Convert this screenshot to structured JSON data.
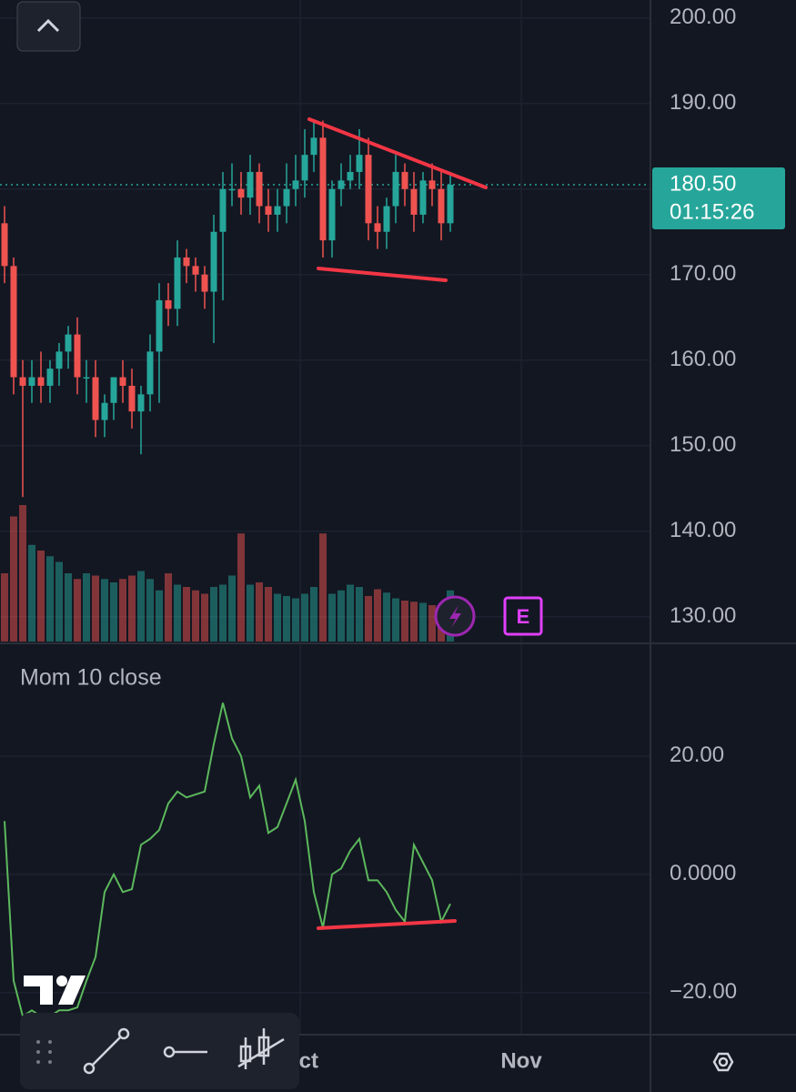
{
  "chart_data": [
    {
      "type": "candlestick",
      "xlim": [
        -0.5,
        71
      ],
      "xticks": [
        {
          "value": 32.5,
          "label": "Oct"
        },
        {
          "value": 56.8,
          "label": "Nov"
        }
      ],
      "ylim": [
        127.1,
        202.1
      ],
      "yticks": [
        {
          "value": 130,
          "label": "130.00"
        },
        {
          "value": 140,
          "label": "140.00"
        },
        {
          "value": 150,
          "label": "150.00"
        },
        {
          "value": 160,
          "label": "160.00"
        },
        {
          "value": 170,
          "label": "170.00"
        },
        {
          "value": 180,
          "label": "180.00"
        },
        {
          "value": 190,
          "label": "190.00"
        },
        {
          "value": 200,
          "label": "200.00"
        }
      ],
      "up_color": "#26a69a",
      "down_color": "#ef5350",
      "open": [
        176,
        171,
        158,
        157,
        158,
        157,
        159,
        161,
        163,
        158,
        158,
        153,
        155,
        158,
        157,
        154,
        156,
        161,
        167,
        166,
        172,
        171,
        170,
        168,
        175,
        180,
        180,
        179,
        182,
        178,
        177,
        178,
        180,
        181,
        184,
        186,
        174,
        180,
        181,
        182,
        184,
        176,
        175,
        178,
        182,
        180,
        177,
        181,
        180,
        176
      ],
      "high": [
        178,
        172,
        160,
        160,
        161,
        160,
        162,
        164,
        165,
        160,
        160,
        156,
        158,
        160,
        159,
        157,
        163,
        169,
        169,
        174,
        173,
        172,
        171,
        177,
        182,
        183,
        182,
        184,
        183,
        180,
        180,
        183,
        184,
        187,
        188,
        188,
        181,
        183,
        184,
        187,
        186,
        178,
        179,
        184,
        183,
        182,
        182,
        183,
        182,
        182
      ],
      "low": [
        169,
        156,
        144,
        155,
        155,
        155,
        157,
        159,
        156,
        155,
        151,
        151,
        153,
        155,
        152,
        149,
        154,
        155,
        164,
        164,
        169,
        168,
        166,
        162,
        167,
        178,
        177,
        177,
        176,
        175,
        175,
        176,
        178,
        179,
        182,
        172,
        172,
        178,
        180,
        180,
        174,
        173,
        173,
        176,
        178,
        175,
        176,
        178,
        174,
        175
      ],
      "close": [
        171,
        158,
        157,
        158,
        157,
        159,
        161,
        163,
        158,
        158,
        153,
        155,
        158,
        157,
        154,
        156,
        161,
        167,
        166,
        172,
        171,
        170,
        168,
        175,
        180,
        180,
        179,
        182,
        178,
        177,
        178,
        180,
        181,
        184,
        186,
        174,
        180,
        181,
        182,
        184,
        176,
        175,
        178,
        182,
        180,
        177,
        181,
        180,
        176,
        180.5
      ],
      "volume": [
        60,
        110,
        120,
        85,
        80,
        75,
        70,
        60,
        55,
        60,
        58,
        55,
        52,
        55,
        58,
        62,
        55,
        45,
        60,
        50,
        48,
        45,
        42,
        48,
        50,
        58,
        95,
        50,
        52,
        48,
        42,
        40,
        38,
        42,
        48,
        95,
        42,
        45,
        50,
        48,
        40,
        46,
        43,
        38,
        36,
        35,
        34,
        32,
        30,
        45
      ],
      "last_price": {
        "value": 180.5,
        "label": "180.50"
      },
      "countdown": "01:15:26",
      "earnings_badge": "E"
    },
    {
      "type": "line",
      "title": "Mom 10 close",
      "color": "#5cb85c",
      "ylim": [
        -26.8,
        38.9
      ],
      "yticks": [
        {
          "value": -20,
          "label": "−20.00"
        },
        {
          "value": 0,
          "label": "0.0000"
        },
        {
          "value": 20,
          "label": "20.00"
        }
      ],
      "values": [
        9,
        -18,
        -24,
        -23,
        -24,
        -24,
        -23,
        -23,
        -22.5,
        -18,
        -14,
        -3,
        0,
        -3,
        -2.5,
        5,
        6,
        7.5,
        12,
        14,
        13,
        13.5,
        14,
        22,
        29,
        23,
        20,
        13,
        15,
        7,
        8,
        12,
        16,
        9,
        -3,
        -9,
        0,
        1,
        4,
        6,
        -1,
        -1,
        -3,
        -6,
        -8,
        5,
        2,
        -1,
        -8,
        -5
      ]
    }
  ]
}
